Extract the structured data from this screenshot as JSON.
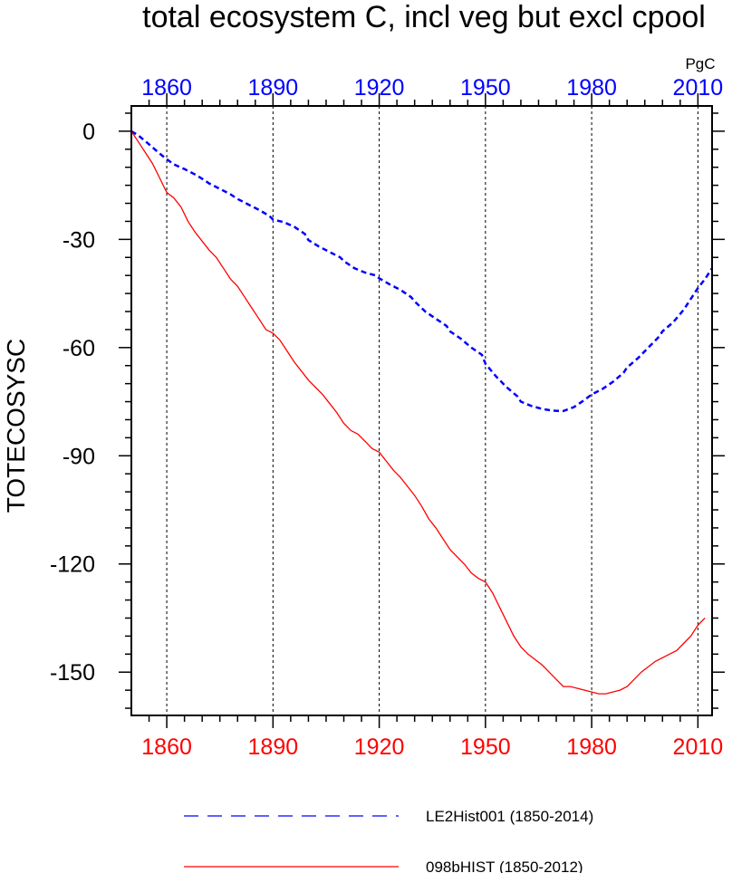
{
  "chart_data": {
    "type": "line",
    "title": "total ecosystem C, incl veg but excl cpool",
    "ylabel": "TOTECOSYSC",
    "units": "PgC",
    "xlim": [
      1850,
      2014
    ],
    "ylim": [
      -162,
      7
    ],
    "x_ticks": [
      1860,
      1890,
      1920,
      1950,
      1980,
      2010
    ],
    "y_ticks": [
      0,
      -30,
      -60,
      -90,
      -120,
      -150
    ],
    "top_axis_color": "#0000ff",
    "bottom_axis_color": "#ff0000",
    "grid": "vertical dashed at major x ticks",
    "legend_position": "bottom",
    "series": [
      {
        "name": "LE2Hist001 (1850-2014)",
        "color": "#0000ff",
        "style": "dashed",
        "x": [
          1850,
          1852,
          1854,
          1856,
          1858,
          1860,
          1862,
          1865,
          1868,
          1870,
          1872,
          1875,
          1878,
          1880,
          1883,
          1886,
          1889,
          1890,
          1893,
          1896,
          1899,
          1900,
          1903,
          1906,
          1909,
          1910,
          1913,
          1916,
          1919,
          1920,
          1923,
          1926,
          1929,
          1930,
          1933,
          1936,
          1939,
          1940,
          1943,
          1946,
          1949,
          1950,
          1953,
          1956,
          1959,
          1960,
          1963,
          1966,
          1969,
          1972,
          1975,
          1978,
          1980,
          1983,
          1986,
          1989,
          1990,
          1993,
          1996,
          1999,
          2000,
          2003,
          2006,
          2009,
          2010,
          2012,
          2014
        ],
        "y": [
          0,
          -1.2,
          -2.8,
          -4.5,
          -6.2,
          -7.8,
          -9.2,
          -10.5,
          -12,
          -13.2,
          -14.5,
          -16,
          -17.5,
          -18.8,
          -20.3,
          -21.8,
          -23.5,
          -24.5,
          -25.2,
          -26.5,
          -28.5,
          -30.2,
          -32,
          -33.5,
          -35,
          -36,
          -38,
          -39.2,
          -40,
          -40.8,
          -42.5,
          -44,
          -46,
          -47.2,
          -50,
          -52,
          -54,
          -55.5,
          -57.5,
          -60,
          -62,
          -64.5,
          -68,
          -71,
          -73.5,
          -75,
          -76.2,
          -77,
          -77.5,
          -77.6,
          -76.5,
          -74.5,
          -73,
          -71.5,
          -69.5,
          -67,
          -65.5,
          -63,
          -60,
          -57,
          -55.5,
          -53,
          -49.5,
          -45,
          -43.5,
          -41,
          -38
        ]
      },
      {
        "name": "098bHIST (1850-2012)",
        "color": "#ff0000",
        "style": "solid",
        "x": [
          1850,
          1852,
          1854,
          1856,
          1858,
          1860,
          1862,
          1864,
          1866,
          1868,
          1870,
          1872,
          1874,
          1876,
          1878,
          1880,
          1882,
          1884,
          1886,
          1888,
          1890,
          1892,
          1894,
          1896,
          1898,
          1900,
          1902,
          1904,
          1906,
          1908,
          1910,
          1912,
          1914,
          1916,
          1918,
          1920,
          1922,
          1924,
          1926,
          1928,
          1930,
          1932,
          1934,
          1936,
          1938,
          1940,
          1942,
          1944,
          1946,
          1948,
          1950,
          1952,
          1954,
          1956,
          1958,
          1960,
          1962,
          1964,
          1966,
          1968,
          1970,
          1972,
          1974,
          1976,
          1978,
          1980,
          1982,
          1984,
          1986,
          1988,
          1990,
          1992,
          1994,
          1996,
          1998,
          2000,
          2002,
          2004,
          2006,
          2008,
          2010,
          2012
        ],
        "y": [
          0,
          -3,
          -6,
          -9,
          -13,
          -17,
          -18.5,
          -21,
          -25,
          -28,
          -30.5,
          -33,
          -35,
          -38,
          -41,
          -43,
          -46,
          -49,
          -52,
          -55,
          -56,
          -58,
          -61,
          -64,
          -66.5,
          -69,
          -71,
          -73,
          -75.5,
          -78,
          -81,
          -83,
          -84,
          -86,
          -88,
          -89,
          -91.5,
          -94,
          -96,
          -98.5,
          -101,
          -104,
          -107.5,
          -110,
          -113,
          -116,
          -118,
          -120,
          -122.5,
          -124,
          -125,
          -128,
          -132,
          -136,
          -140,
          -143,
          -145,
          -146.5,
          -148,
          -150,
          -152,
          -154,
          -154,
          -154.5,
          -155,
          -155.5,
          -156,
          -156,
          -155.5,
          -155,
          -154,
          -152,
          -150,
          -148.5,
          -147,
          -146,
          -145,
          -144,
          -142,
          -140,
          -137,
          -135
        ]
      }
    ]
  }
}
